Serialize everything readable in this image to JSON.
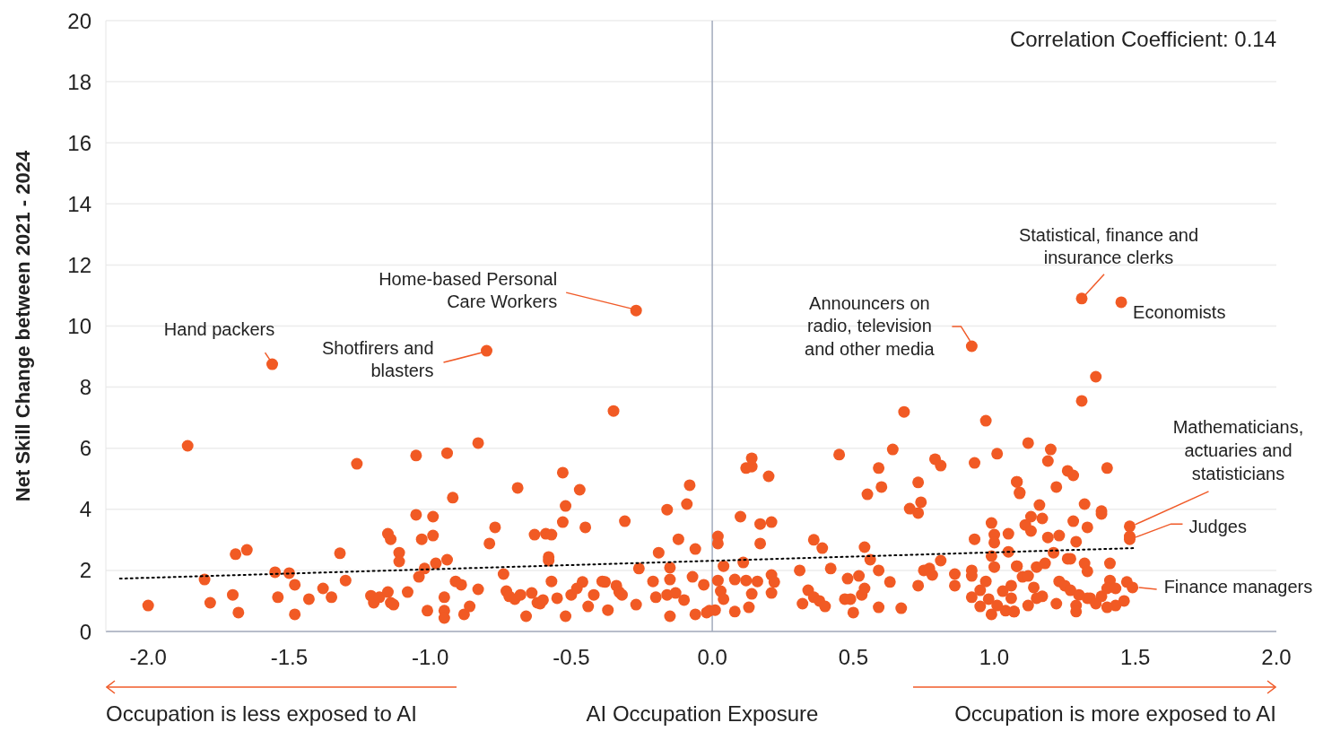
{
  "chart_data": {
    "type": "scatter",
    "xlabel": "AI Occupation Exposure",
    "ylabel": "Net Skill Change between 2021 - 2024",
    "xlim": [
      -2.15,
      2.0
    ],
    "xticks": [
      {
        "value": -2,
        "label": "-2.0"
      },
      {
        "value": -1.5,
        "label": "-1.5"
      },
      {
        "value": -1,
        "label": "-1.0"
      },
      {
        "value": -0.5,
        "label": "-0.5"
      },
      {
        "value": 0,
        "label": "0.0"
      },
      {
        "value": 0.5,
        "label": "0.5"
      },
      {
        "value": 1,
        "label": "1.0"
      },
      {
        "value": 1.5,
        "label": "1.5"
      },
      {
        "value": 2,
        "label": "2.0"
      }
    ],
    "ylim": [
      0,
      20
    ],
    "yticks": [
      0,
      2,
      4,
      6,
      8,
      10,
      12,
      14,
      16,
      18,
      20
    ],
    "grid": "y",
    "legend": false,
    "ref_lines": [
      {
        "axis": "x",
        "value": 0,
        "color": "#a3abbd"
      }
    ],
    "series": [
      {
        "color": "#f15a24",
        "marker": "circle",
        "x": [
          -2.0,
          -1.86,
          -1.8,
          -1.78,
          -1.7,
          -1.69,
          -1.68,
          -1.65,
          -1.56,
          -1.55,
          -1.54,
          -1.5,
          -1.48,
          -1.48,
          -1.43,
          -1.38,
          -1.35,
          -1.32,
          -1.3,
          -1.26,
          -1.21,
          -1.2,
          -1.18,
          -1.15,
          -1.15,
          -1.14,
          -1.14,
          -1.13,
          -1.11,
          -1.11,
          -1.08,
          -1.05,
          -1.05,
          -1.04,
          -1.03,
          -1.02,
          -1.01,
          -0.99,
          -0.99,
          -0.98,
          -0.95,
          -0.95,
          -0.95,
          -0.94,
          -0.94,
          -0.92,
          -0.91,
          -0.89,
          -0.88,
          -0.86,
          -0.83,
          -0.83,
          -0.79,
          -0.8,
          -0.77,
          -0.74,
          -0.73,
          -0.72,
          -0.7,
          -0.69,
          -0.68,
          -0.66,
          -0.64,
          -0.63,
          -0.62,
          -0.61,
          -0.6,
          -0.59,
          -0.58,
          -0.58,
          -0.57,
          -0.57,
          -0.55,
          -0.53,
          -0.53,
          -0.52,
          -0.52,
          -0.5,
          -0.48,
          -0.47,
          -0.46,
          -0.45,
          -0.44,
          -0.42,
          -0.39,
          -0.38,
          -0.37,
          -0.35,
          -0.34,
          -0.33,
          -0.32,
          -0.31,
          -0.27,
          -0.27,
          -0.26,
          -0.21,
          -0.2,
          -0.19,
          -0.16,
          -0.16,
          -0.15,
          -0.15,
          -0.15,
          -0.13,
          -0.12,
          -0.1,
          -0.09,
          -0.08,
          -0.07,
          -0.06,
          -0.06,
          -0.03,
          -0.02,
          -0.01,
          0.02,
          0.02,
          0.04,
          0.02,
          0.03,
          0.04,
          0.01,
          0.1,
          0.11,
          0.08,
          0.08,
          0.12,
          0.13,
          0.14,
          0.12,
          0.14,
          0.14,
          0.17,
          0.17,
          0.16,
          0.2,
          0.21,
          0.21,
          0.22,
          0.21,
          0.31,
          0.32,
          0.34,
          0.36,
          0.39,
          0.36,
          0.38,
          0.4,
          0.42,
          0.45,
          0.47,
          0.48,
          0.49,
          0.5,
          0.52,
          0.53,
          0.54,
          0.54,
          0.56,
          0.55,
          0.59,
          0.6,
          0.59,
          0.59,
          0.63,
          0.64,
          0.67,
          0.68,
          0.7,
          0.73,
          0.73,
          0.74,
          0.73,
          0.75,
          0.77,
          0.79,
          0.81,
          0.81,
          0.78,
          0.86,
          0.86,
          0.93,
          0.92,
          0.92,
          0.92,
          0.95,
          0.95,
          0.93,
          0.97,
          1.01,
          0.97,
          0.98,
          0.99,
          0.99,
          0.99,
          1.0,
          1.0,
          1.0,
          1.01,
          1.03,
          1.05,
          1.05,
          1.06,
          1.06,
          1.08,
          1.09,
          1.08,
          1.07,
          1.04,
          0.92,
          1.31,
          1.45,
          1.36,
          1.31,
          1.12,
          1.2,
          1.19,
          1.4,
          1.26,
          1.28,
          1.08,
          1.09,
          1.22,
          1.32,
          1.16,
          1.38,
          1.38,
          1.13,
          1.17,
          1.28,
          1.11,
          1.33,
          1.13,
          1.23,
          1.19,
          1.29,
          1.48,
          1.48,
          1.48,
          1.21,
          1.26,
          1.27,
          1.08,
          1.15,
          1.18,
          1.32,
          1.33,
          1.41,
          1.1,
          1.12,
          1.23,
          1.25,
          1.27,
          1.3,
          1.33,
          1.34,
          1.38,
          1.41,
          1.4,
          1.43,
          1.47,
          1.49,
          1.46,
          1.43,
          1.4,
          1.36,
          1.29,
          1.29,
          1.22,
          1.17,
          1.15,
          1.14,
          1.12,
          1.07
        ],
        "values": [
          0.85,
          6.08,
          1.7,
          0.94,
          1.2,
          2.53,
          0.62,
          2.67,
          8.75,
          1.94,
          1.12,
          1.91,
          1.53,
          0.56,
          1.06,
          1.41,
          1.12,
          2.56,
          1.67,
          5.49,
          1.17,
          0.94,
          1.12,
          3.2,
          1.29,
          3.02,
          0.94,
          0.88,
          2.58,
          2.29,
          1.29,
          5.76,
          3.82,
          1.79,
          3.02,
          2.06,
          0.68,
          3.76,
          3.14,
          2.23,
          1.12,
          0.68,
          0.44,
          5.84,
          2.35,
          4.38,
          1.64,
          1.53,
          0.56,
          0.82,
          1.38,
          6.17,
          2.88,
          9.19,
          3.41,
          1.88,
          1.32,
          1.15,
          1.06,
          4.7,
          1.2,
          0.5,
          1.26,
          3.17,
          0.94,
          0.91,
          1.03,
          3.2,
          2.44,
          2.32,
          1.64,
          3.17,
          1.09,
          5.2,
          3.58,
          4.11,
          0.5,
          1.2,
          1.41,
          4.64,
          1.62,
          3.41,
          0.82,
          1.2,
          1.64,
          1.62,
          0.7,
          7.22,
          1.5,
          1.29,
          1.2,
          3.61,
          10.51,
          0.88,
          2.06,
          1.64,
          1.12,
          2.58,
          1.2,
          3.99,
          2.09,
          1.7,
          0.5,
          1.26,
          3.02,
          1.03,
          4.17,
          4.79,
          1.79,
          2.7,
          0.56,
          1.53,
          0.62,
          0.68,
          3.11,
          2.88,
          2.14,
          1.67,
          1.32,
          1.06,
          0.7,
          3.76,
          2.26,
          1.7,
          0.65,
          1.67,
          0.79,
          1.23,
          5.35,
          5.4,
          5.67,
          3.52,
          2.88,
          1.64,
          5.08,
          3.58,
          1.85,
          1.62,
          1.26,
          2.0,
          0.91,
          1.35,
          3.0,
          2.73,
          1.12,
          1.0,
          0.82,
          2.06,
          5.79,
          1.06,
          1.73,
          1.06,
          0.62,
          1.82,
          1.2,
          1.41,
          2.76,
          2.35,
          4.49,
          5.35,
          4.73,
          2.0,
          0.79,
          1.62,
          5.96,
          0.76,
          7.19,
          4.02,
          4.88,
          3.88,
          4.23,
          1.5,
          2.0,
          2.06,
          5.64,
          5.43,
          2.32,
          1.85,
          1.88,
          1.5,
          3.02,
          2.0,
          1.82,
          1.12,
          1.35,
          0.82,
          5.52,
          6.9,
          5.82,
          1.64,
          1.06,
          0.56,
          2.47,
          3.55,
          3.17,
          2.91,
          2.11,
          0.85,
          1.32,
          3.2,
          2.61,
          1.5,
          1.09,
          4.9,
          4.55,
          2.14,
          0.65,
          0.68,
          9.34,
          10.9,
          10.78,
          8.34,
          7.55,
          6.17,
          5.96,
          5.58,
          5.35,
          5.26,
          5.11,
          4.9,
          4.52,
          4.73,
          4.17,
          4.14,
          3.94,
          3.85,
          3.76,
          3.7,
          3.61,
          3.49,
          3.41,
          3.29,
          3.14,
          3.08,
          2.94,
          3.44,
          3.11,
          3.02,
          2.58,
          2.38,
          2.38,
          2.14,
          2.11,
          2.23,
          2.23,
          1.97,
          2.23,
          1.79,
          1.82,
          1.64,
          1.5,
          1.35,
          1.2,
          1.09,
          1.09,
          1.15,
          1.67,
          1.41,
          1.41,
          1.62,
          1.44,
          1.0,
          0.85,
          0.79,
          0.91,
          0.85,
          0.65,
          0.91,
          1.15,
          1.09,
          1.44,
          0.85,
          0.65
        ]
      },
      {
        "type": "line",
        "color": "#000000",
        "line_style": "dotted",
        "marker": "none",
        "x": [
          -2.1,
          1.5
        ],
        "values": [
          1.73,
          2.73
        ]
      }
    ],
    "annotations": [
      {
        "text": "Hand packers",
        "x": -1.56,
        "y": 8.75
      },
      {
        "text": "Shotfirers and blasters",
        "x": -0.8,
        "y": 9.19
      },
      {
        "text": "Home-based Personal Care Workers",
        "x": -0.27,
        "y": 10.51
      },
      {
        "text": "Announcers on radio, television and other media",
        "x": 0.92,
        "y": 9.34
      },
      {
        "text": "Statistical, finance and insurance clerks",
        "x": 1.31,
        "y": 10.9
      },
      {
        "text": "Economists",
        "x": 1.45,
        "y": 10.78
      },
      {
        "text": "Mathematicians, actuaries and statisticians",
        "x": 1.48,
        "y": 3.44
      },
      {
        "text": "Judges",
        "x": 1.48,
        "y": 3.02
      },
      {
        "text": "Finance managers",
        "x": 1.49,
        "y": 1.44
      },
      "Correlation Coefficient: 0.14",
      "Occupation is less exposed to AI",
      "Occupation is more exposed to AI"
    ]
  }
}
